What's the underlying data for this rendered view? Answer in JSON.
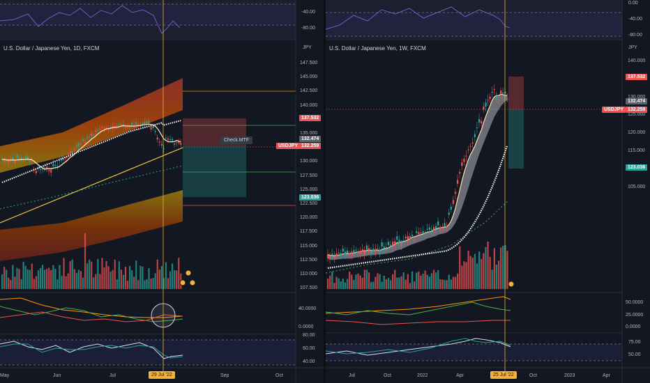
{
  "left": {
    "title": "U.S. Dollar / Japanese Yen, 1D, FXCM",
    "currency": "JPY",
    "price_labels": [
      "147.500",
      "145.000",
      "142.500",
      "140.000",
      "137.500",
      "135.000",
      "132.500",
      "130.000",
      "127.500",
      "125.000",
      "122.500",
      "120.000",
      "117.500",
      "115.000",
      "112.500",
      "110.000",
      "107.500"
    ],
    "rsi_labels": [
      "-40.00",
      "-80.00"
    ],
    "adx_labels": [
      "40.0000",
      "0.0000"
    ],
    "stoch_labels": [
      "80.00",
      "60.00",
      "40.00"
    ],
    "tags": {
      "top": "137.532",
      "last": "132.474",
      "symbol": "USDJPY",
      "price": "132.259",
      "bottom": "123.036"
    },
    "check_mtf": "Check MTF",
    "x_labels": [
      "May",
      "Jun",
      "Jul",
      "Sep",
      "Oct"
    ],
    "date_badge": "29 Jul '22"
  },
  "right": {
    "title": "U.S. Dollar / Japanese Yen, 1W, FXCM",
    "currency": "JPY",
    "price_labels": [
      "140.000",
      "135.000",
      "130.000",
      "125.000",
      "120.000",
      "115.000",
      "110.000",
      "105.000"
    ],
    "rsi_labels": [
      "0.00",
      "-40.00",
      "-80.00"
    ],
    "adx_labels": [
      "50.0000",
      "25.0000",
      "0.0000"
    ],
    "stoch_labels": [
      "75.00",
      "50.00"
    ],
    "tags": {
      "top": "137.532",
      "last": "132.474",
      "symbol": "USDJPY",
      "price": "132.259",
      "bottom": "123.036"
    },
    "x_labels": [
      "Jul",
      "Oct",
      "2022",
      "Apr",
      "Oct",
      "2023",
      "Apr"
    ],
    "date_badge": "25 Jul '22"
  },
  "colors": {
    "bull": "#26a69a",
    "bear": "#ef5350",
    "bg": "#131722",
    "crosshair": "#f0b23e"
  }
}
